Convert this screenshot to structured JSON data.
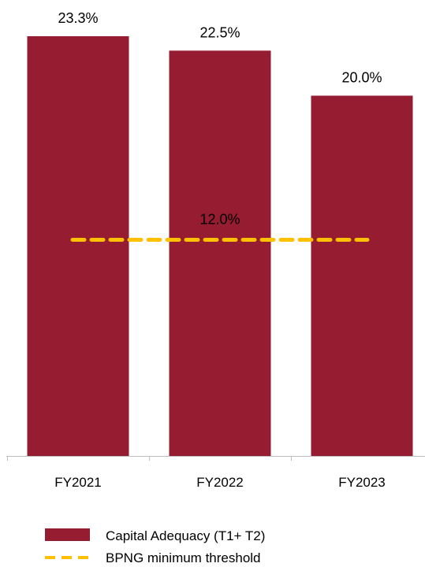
{
  "chart_data": {
    "type": "bar",
    "categories": [
      "FY2021",
      "FY2022",
      "FY2023"
    ],
    "series": [
      {
        "name": "Capital Adequacy (T1+ T2)",
        "values": [
          23.3,
          22.5,
          20.0
        ],
        "labels": [
          "23.3%",
          "22.5%",
          "20.0%"
        ],
        "color": "#951C31"
      }
    ],
    "threshold": {
      "name": "BPNG minimum threshold",
      "value": 12.0,
      "label": "12.0%",
      "color": "#FFC000",
      "style": "dashed"
    },
    "title": "",
    "xlabel": "",
    "ylabel": "",
    "ylim": [
      0,
      23.3
    ],
    "grid": false,
    "legend_position": "bottom-left"
  }
}
